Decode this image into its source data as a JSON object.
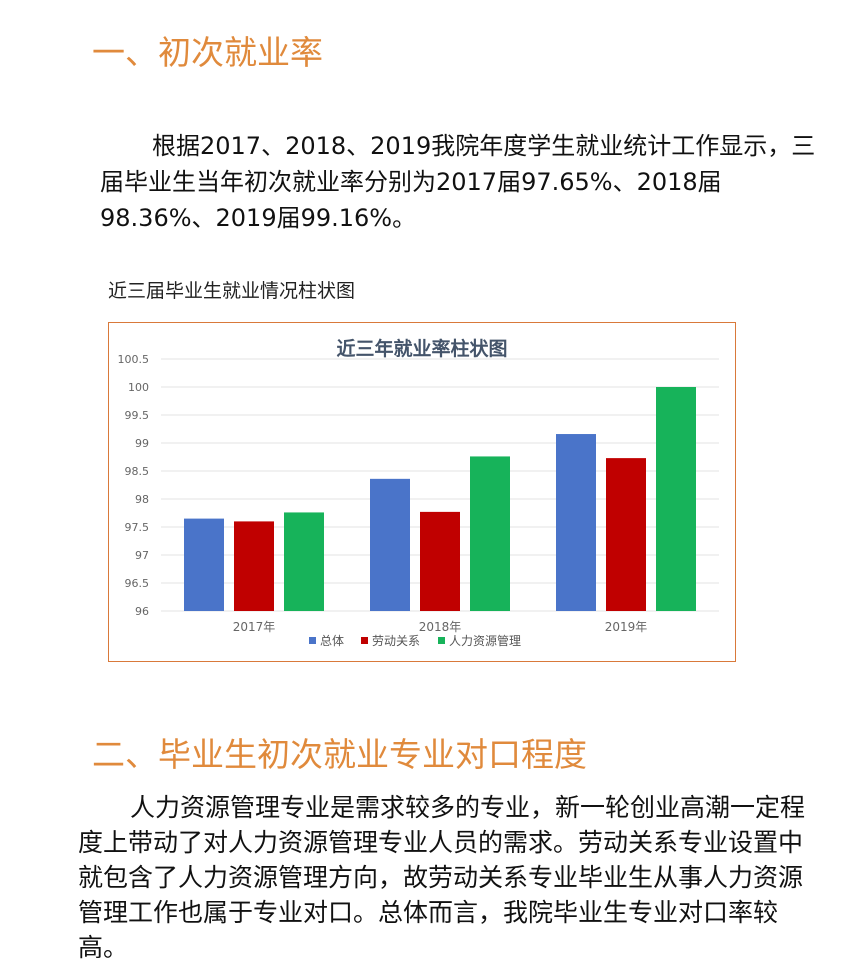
{
  "section1": {
    "title": "一、初次就业率",
    "paragraph": "根据2017、2018、2019我院年度学生就业统计工作显示，三届毕业生当年初次就业率分别为2017届97.65%、2018届98.36%、2019届99.16%。"
  },
  "chart_caption": "近三届毕业生就业情况柱状图",
  "chart_data": {
    "type": "bar",
    "title": "近三年就业率柱状图",
    "categories": [
      "2017年",
      "2018年",
      "2019年"
    ],
    "series": [
      {
        "name": "总体",
        "values": [
          97.65,
          98.36,
          99.16
        ],
        "color": "#4a74c9"
      },
      {
        "name": "劳动关系",
        "values": [
          97.6,
          97.77,
          98.73
        ],
        "color": "#c00000"
      },
      {
        "name": "人力资源管理",
        "values": [
          97.76,
          98.76,
          100
        ],
        "color": "#17b35a"
      }
    ],
    "ylim": [
      96,
      100.5
    ],
    "yticks": [
      "96",
      "96.5",
      "97",
      "97.5",
      "98",
      "98.5",
      "99",
      "99.5",
      "100",
      "100.5"
    ],
    "grid": true,
    "legend_position": "bottom"
  },
  "section2": {
    "title": "二、毕业生初次就业专业对口程度",
    "paragraph": "人力资源管理专业是需求较多的专业，新一轮创业高潮一定程度上带动了对人力资源管理专业人员的需求。劳动关系专业设置中就包含了人力资源管理方向，故劳动关系专业毕业生从事人力资源管理工作也属于专业对口。总体而言，我院毕业生专业对口率较高。"
  }
}
